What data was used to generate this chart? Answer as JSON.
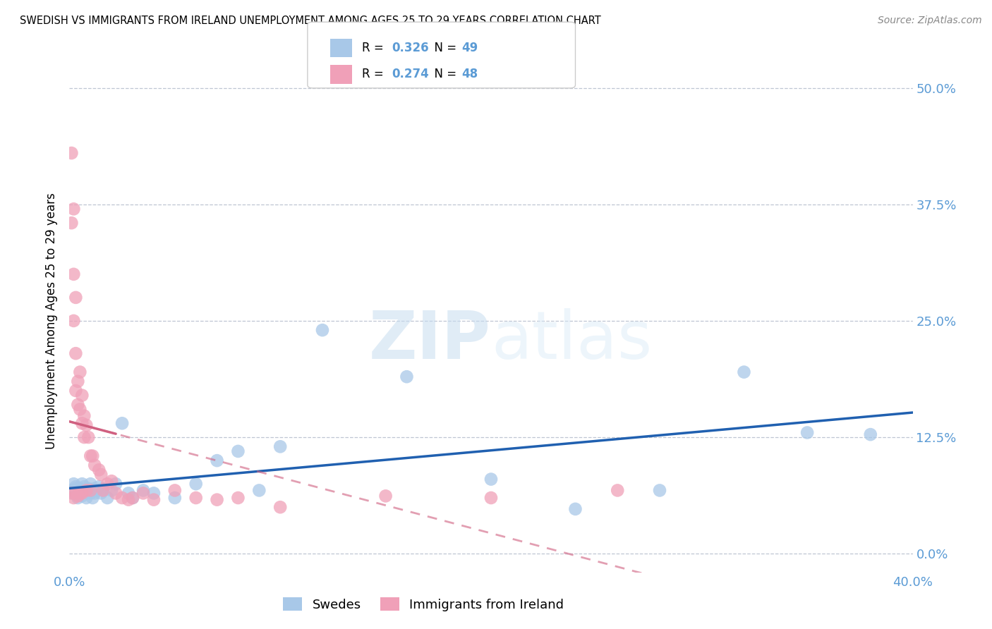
{
  "title": "SWEDISH VS IMMIGRANTS FROM IRELAND UNEMPLOYMENT AMONG AGES 25 TO 29 YEARS CORRELATION CHART",
  "source": "Source: ZipAtlas.com",
  "tick_color": "#5b9bd5",
  "ylabel": "Unemployment Among Ages 25 to 29 years",
  "xlim": [
    0.0,
    0.4
  ],
  "ylim": [
    -0.02,
    0.52
  ],
  "y_ticks": [
    0.0,
    0.125,
    0.25,
    0.375,
    0.5
  ],
  "y_tick_labels": [
    "0.0%",
    "12.5%",
    "25.0%",
    "37.5%",
    "50.0%"
  ],
  "x_ticks_show": [
    0.0,
    0.4
  ],
  "x_tick_labels_show": [
    "0.0%",
    "40.0%"
  ],
  "legend_label1": "Swedes",
  "legend_label2": "Immigrants from Ireland",
  "R1": "0.326",
  "N1": "49",
  "R2": "0.274",
  "N2": "48",
  "color_swedes": "#a8c8e8",
  "color_ireland": "#f0a0b8",
  "trendline_swedes": "#2060b0",
  "trendline_ireland": "#d06080",
  "watermark_zip": "ZIP",
  "watermark_atlas": "atlas",
  "swedes_x": [
    0.001,
    0.002,
    0.002,
    0.003,
    0.003,
    0.004,
    0.004,
    0.005,
    0.005,
    0.006,
    0.006,
    0.007,
    0.007,
    0.008,
    0.008,
    0.009,
    0.009,
    0.01,
    0.01,
    0.011,
    0.011,
    0.012,
    0.012,
    0.013,
    0.014,
    0.015,
    0.016,
    0.018,
    0.02,
    0.022,
    0.025,
    0.028,
    0.03,
    0.035,
    0.04,
    0.05,
    0.06,
    0.07,
    0.08,
    0.09,
    0.1,
    0.12,
    0.16,
    0.2,
    0.24,
    0.28,
    0.32,
    0.35,
    0.38
  ],
  "swedes_y": [
    0.068,
    0.065,
    0.075,
    0.07,
    0.072,
    0.06,
    0.068,
    0.065,
    0.07,
    0.062,
    0.075,
    0.068,
    0.072,
    0.065,
    0.06,
    0.068,
    0.07,
    0.065,
    0.075,
    0.068,
    0.06,
    0.065,
    0.07,
    0.068,
    0.072,
    0.065,
    0.07,
    0.06,
    0.068,
    0.075,
    0.14,
    0.065,
    0.06,
    0.068,
    0.065,
    0.06,
    0.075,
    0.1,
    0.11,
    0.068,
    0.115,
    0.24,
    0.19,
    0.08,
    0.048,
    0.068,
    0.195,
    0.13,
    0.128
  ],
  "ireland_x": [
    0.001,
    0.001,
    0.001,
    0.002,
    0.002,
    0.002,
    0.002,
    0.003,
    0.003,
    0.003,
    0.003,
    0.004,
    0.004,
    0.004,
    0.005,
    0.005,
    0.005,
    0.006,
    0.006,
    0.006,
    0.007,
    0.007,
    0.008,
    0.008,
    0.009,
    0.01,
    0.01,
    0.011,
    0.012,
    0.014,
    0.015,
    0.016,
    0.018,
    0.02,
    0.022,
    0.025,
    0.028,
    0.03,
    0.035,
    0.04,
    0.05,
    0.06,
    0.07,
    0.08,
    0.1,
    0.15,
    0.2,
    0.26
  ],
  "ireland_y": [
    0.43,
    0.355,
    0.065,
    0.37,
    0.3,
    0.25,
    0.06,
    0.275,
    0.215,
    0.175,
    0.065,
    0.185,
    0.16,
    0.062,
    0.195,
    0.155,
    0.065,
    0.17,
    0.14,
    0.065,
    0.148,
    0.125,
    0.138,
    0.068,
    0.125,
    0.105,
    0.068,
    0.105,
    0.095,
    0.09,
    0.085,
    0.068,
    0.075,
    0.078,
    0.065,
    0.06,
    0.058,
    0.06,
    0.065,
    0.058,
    0.068,
    0.06,
    0.058,
    0.06,
    0.05,
    0.062,
    0.06,
    0.068
  ]
}
